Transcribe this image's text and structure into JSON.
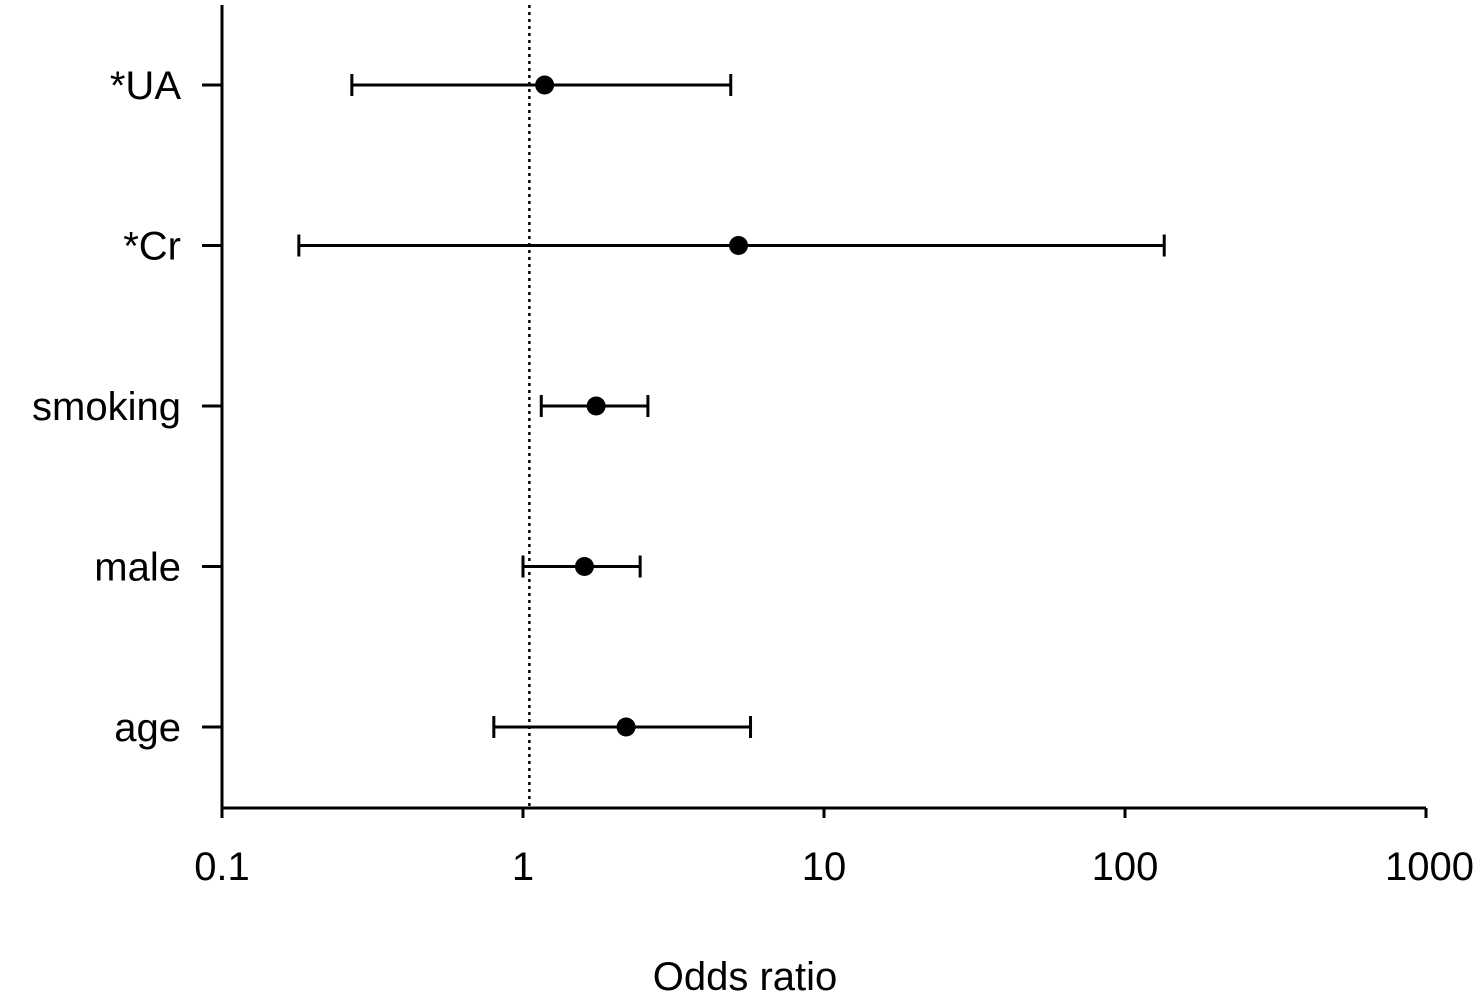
{
  "chart_data": {
    "type": "forest",
    "title": "",
    "xlabel": "Odds ratio",
    "ylabel": "",
    "x_scale": "log",
    "xlim": [
      0.1,
      1000
    ],
    "x_ticks": [
      0.1,
      1,
      10,
      100,
      1000
    ],
    "x_tick_labels": [
      "0.1",
      "1",
      "10",
      "100",
      "1000"
    ],
    "reference_line": 1.05,
    "grid": false,
    "legend": "none",
    "rows": [
      {
        "label": "*UA",
        "or": 1.18,
        "lower": 0.27,
        "upper": 4.9
      },
      {
        "label": "*Cr",
        "or": 5.2,
        "lower": 0.18,
        "upper": 135
      },
      {
        "label": "smoking",
        "or": 1.75,
        "lower": 1.15,
        "upper": 2.6
      },
      {
        "label": "male",
        "or": 1.6,
        "lower": 1.0,
        "upper": 2.45
      },
      {
        "label": "age",
        "or": 2.2,
        "lower": 0.8,
        "upper": 5.7
      }
    ]
  }
}
